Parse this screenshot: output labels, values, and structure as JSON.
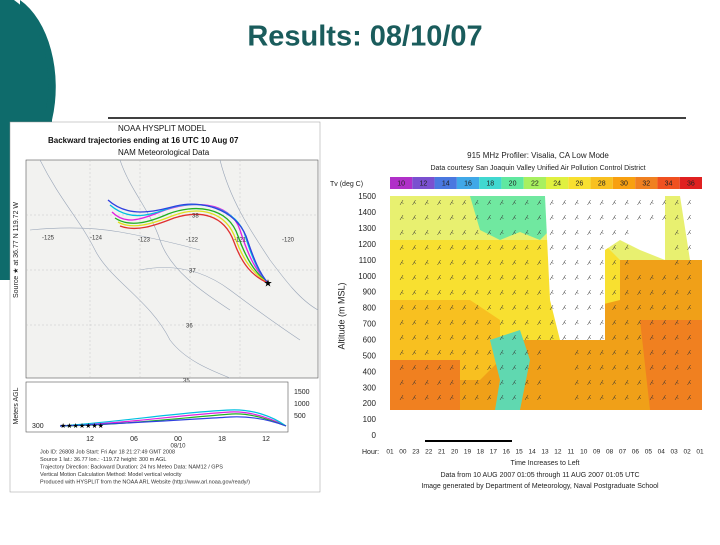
{
  "title": "Results: 08/10/07",
  "hysplit": {
    "heading": [
      "NOAA HYSPLIT MODEL",
      "Backward trajectories ending at 16 UTC 10 Aug 07",
      "NAM Meteorological Data"
    ],
    "source_label": "Source ★ at 36.77 N 119.72 W",
    "longitudes": [
      "-125",
      "-124",
      "-123",
      "-122",
      "-121",
      "-120"
    ],
    "latitudes": [
      "38",
      "37",
      "36",
      "35"
    ],
    "height_axis_label": "Meters AGL",
    "height_ticks": [
      "1500",
      "1000",
      "500"
    ],
    "start_height": "300",
    "time_labels": [
      "12",
      "06",
      "00",
      "18",
      "12"
    ],
    "date_label": "08/10",
    "footer": [
      "Job ID: 26808    Job Start: Fri Apr 18 21:27:49 GMT 2008",
      "Source 1    lat.: 36.77    lon.: -119.72    height: 300 m AGL",
      "Trajectory Direction: Backward    Duration: 24 hrs    Meteo Data: NAM12 / GPS",
      "Vertical Motion Calculation Method: Model vertical velocity",
      "Produced with HYSPLIT from the NOAA ARL Website (http://www.arl.noaa.gov/ready/)"
    ]
  },
  "profiler": {
    "title": "915 MHz Profiler: Visalia, CA    Low Mode",
    "credit": "Data courtesy San Joaquin Valley Unified Air Pollution Control District",
    "scale_label": "Tv (deg C)",
    "scale_values": [
      "10",
      "12",
      "14",
      "16",
      "18",
      "20",
      "22",
      "24",
      "26",
      "28",
      "30",
      "32",
      "34",
      "36"
    ],
    "y_axis_label": "Altitude (m MSL)",
    "y_ticks": [
      "1500",
      "1400",
      "1300",
      "1200",
      "1100",
      "1000",
      "900",
      "800",
      "700",
      "600",
      "500",
      "400",
      "300",
      "200",
      "100",
      "0"
    ],
    "hour_label": "Hour:",
    "hours": [
      "01",
      "00",
      "23",
      "22",
      "21",
      "20",
      "19",
      "18",
      "17",
      "16",
      "15",
      "14",
      "13",
      "12",
      "11",
      "10",
      "09",
      "08",
      "07",
      "06",
      "05",
      "04",
      "03",
      "02",
      "01"
    ],
    "time_note": "Time Increases to Left",
    "data_range": "Data from 10 AUG 2007 01:05 through 11 AUG 2007 01:05 UTC",
    "generated_by": "Image generated by Department of Meteorology, Naval Postgraduate School"
  }
}
